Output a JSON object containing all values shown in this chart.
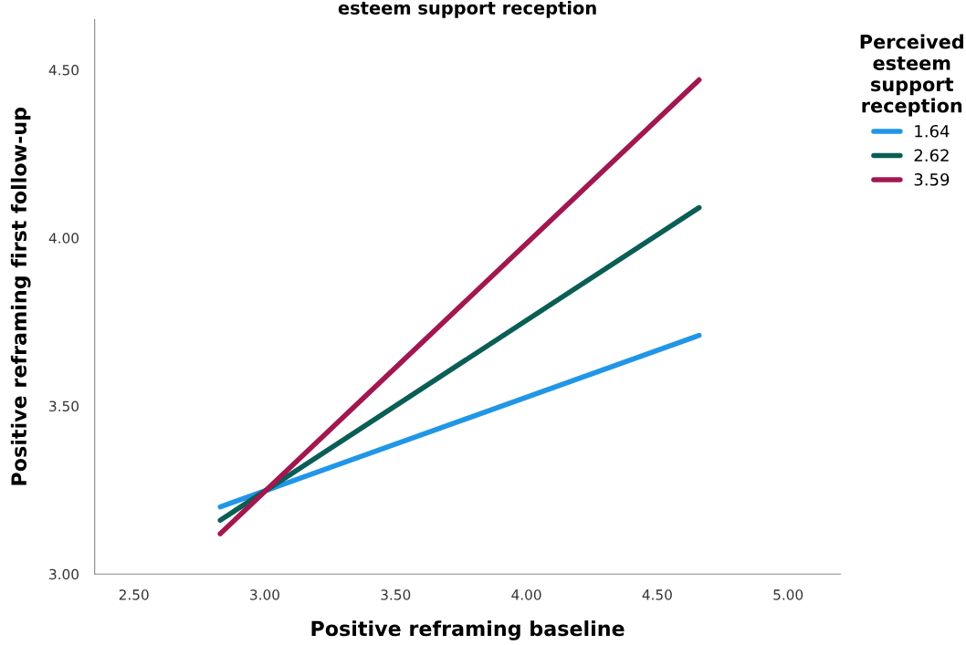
{
  "chart_data": {
    "type": "line",
    "title": "esteem support reception",
    "xlabel": "Positive reframing baseline",
    "ylabel": "Positive reframing first follow-up",
    "legend_title": "Perceived\nesteem\nsupport\nreception",
    "x": [
      2.83,
      4.66
    ],
    "series": [
      {
        "name": "1.64",
        "color": "#2196e6",
        "values": [
          3.2,
          3.71
        ]
      },
      {
        "name": "2.62",
        "color": "#0a5e55",
        "values": [
          3.16,
          4.09
        ]
      },
      {
        "name": "3.59",
        "color": "#a3174f",
        "values": [
          3.12,
          4.47
        ]
      }
    ],
    "xlim": [
      2.35,
      5.2
    ],
    "ylim": [
      3.0,
      4.65
    ],
    "xticks": [
      {
        "value": 2.5,
        "label": "2.50"
      },
      {
        "value": 3.0,
        "label": "3.00"
      },
      {
        "value": 3.5,
        "label": "3.50"
      },
      {
        "value": 4.0,
        "label": "4.00"
      },
      {
        "value": 4.5,
        "label": "4.50"
      },
      {
        "value": 5.0,
        "label": "5.00"
      }
    ],
    "yticks": [
      {
        "value": 3.0,
        "label": "3.00"
      },
      {
        "value": 3.5,
        "label": "3.50"
      },
      {
        "value": 4.0,
        "label": "4.00"
      },
      {
        "value": 4.5,
        "label": "4.50"
      }
    ],
    "grid": false,
    "legend": "right"
  }
}
